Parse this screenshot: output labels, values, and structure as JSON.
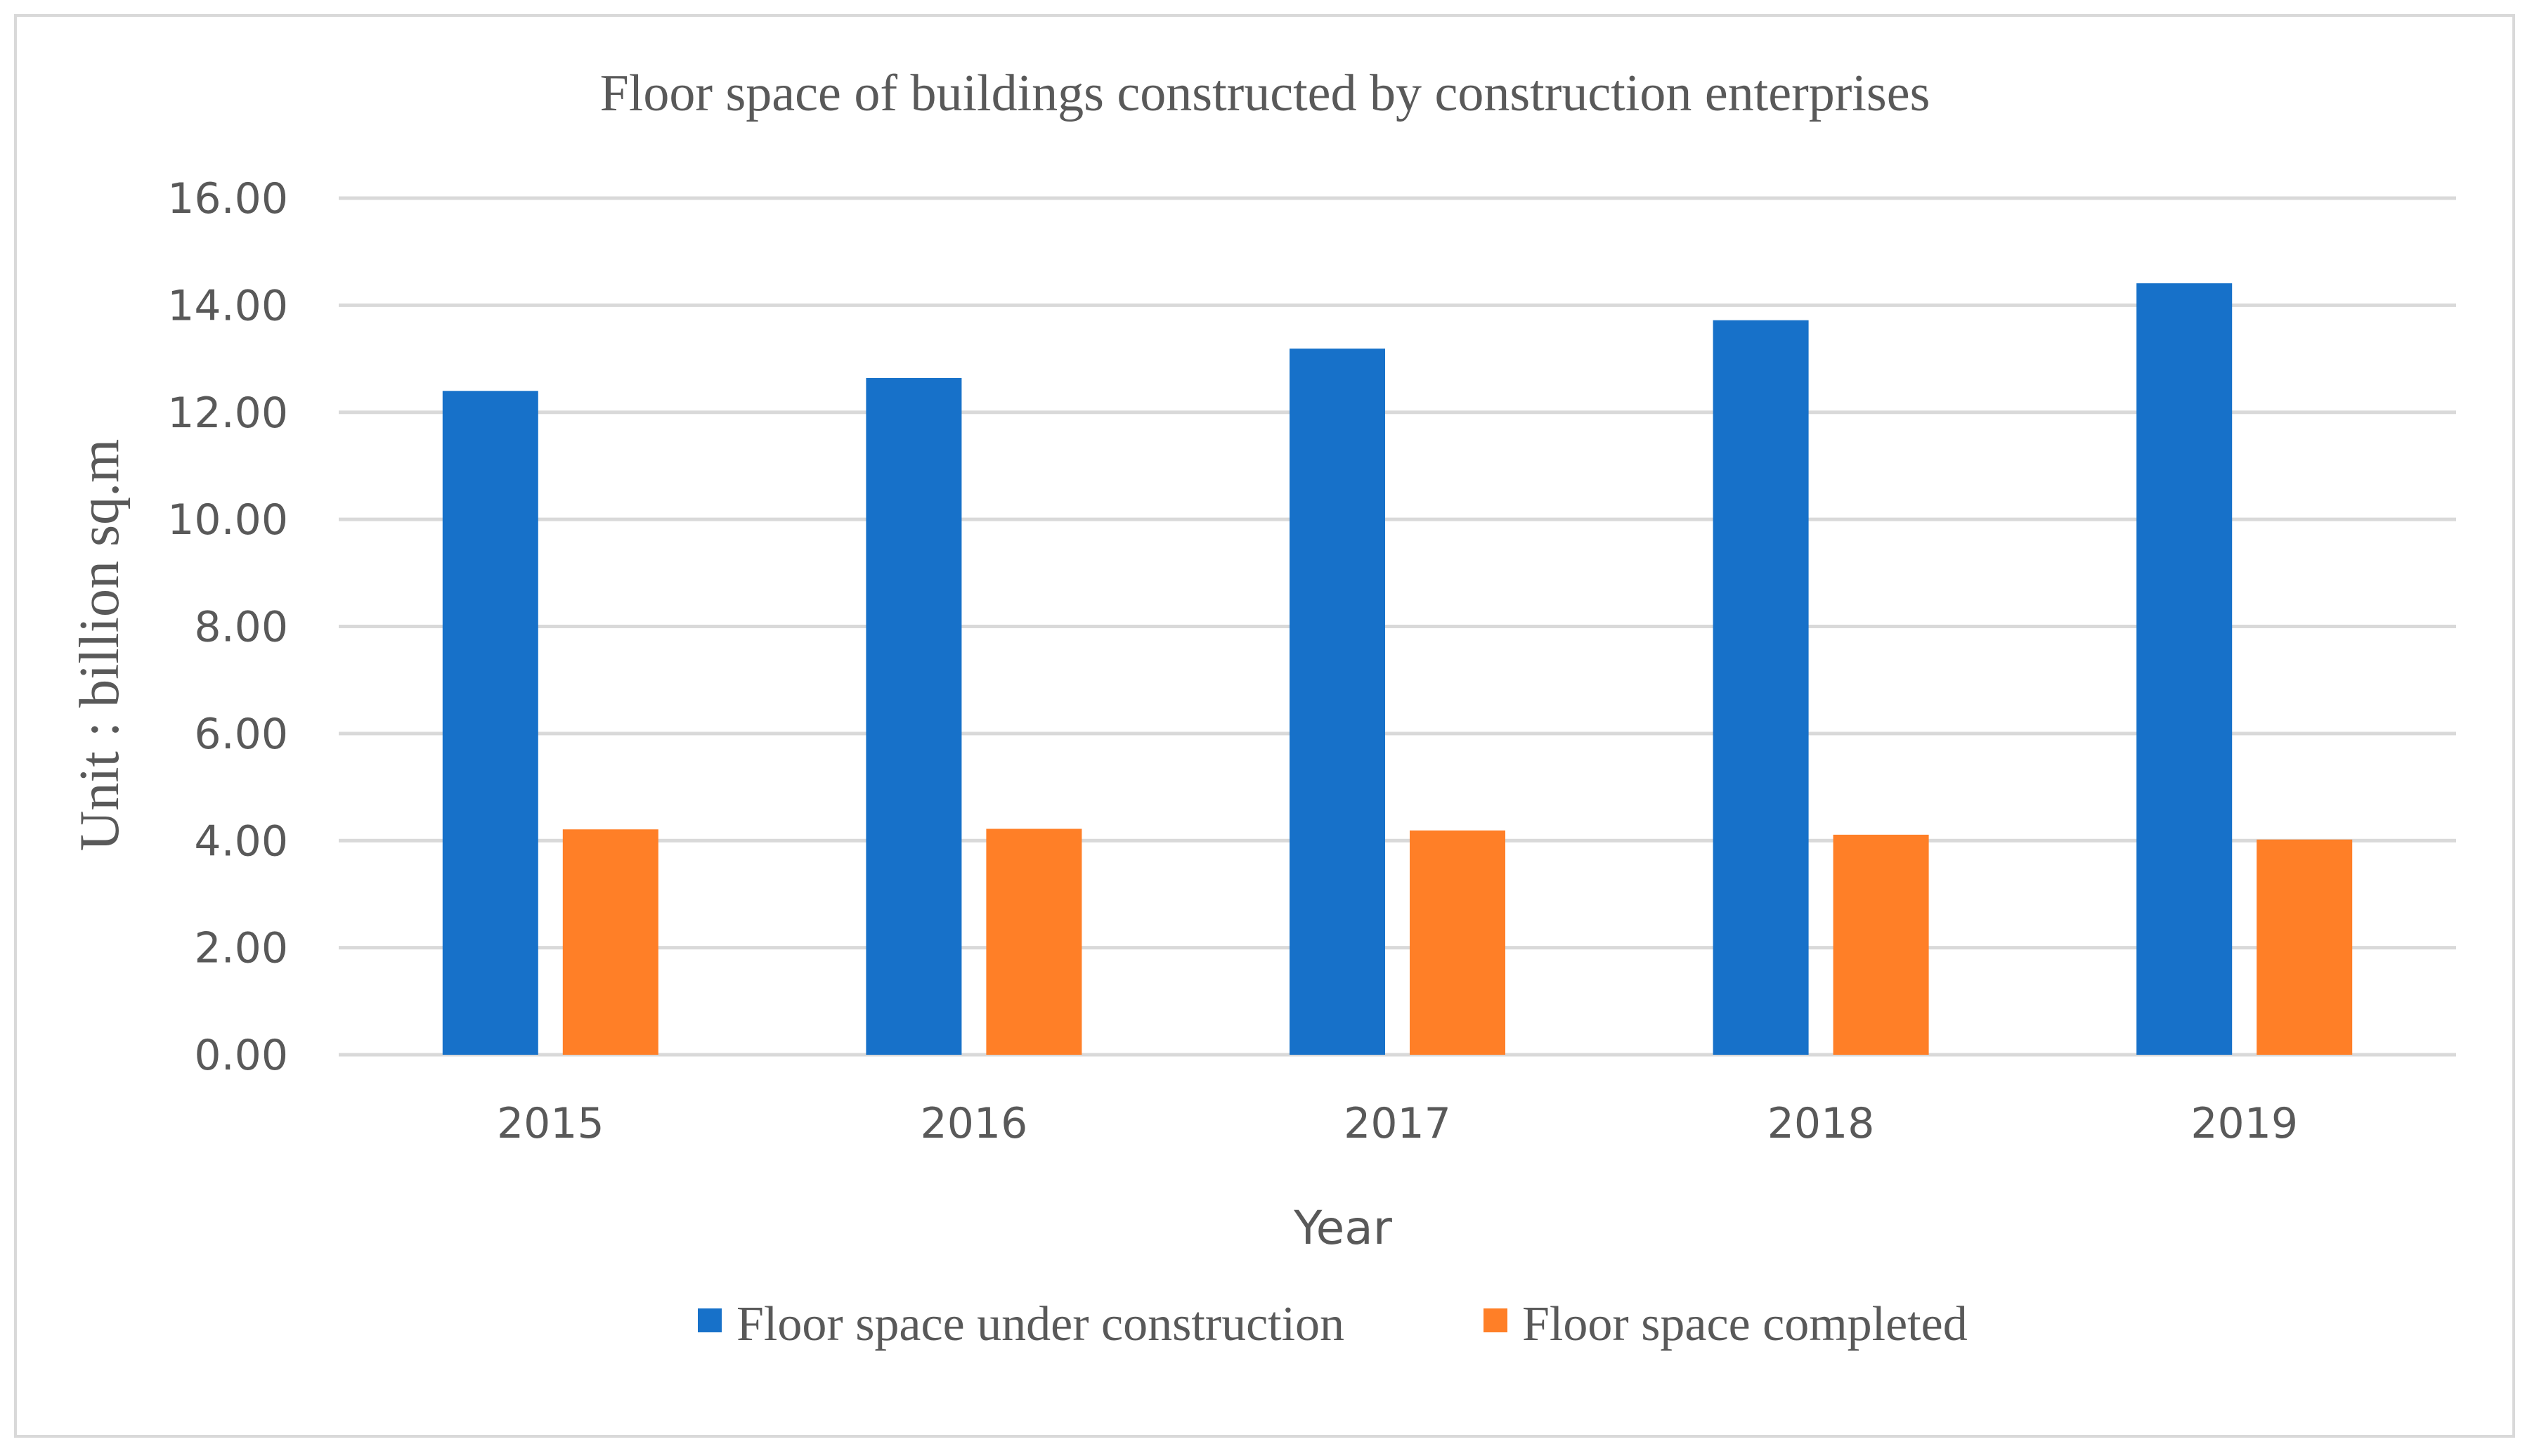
{
  "chart_data": {
    "type": "bar",
    "title": "Floor space of buildings constructed by construction enterprises",
    "xlabel": "Year",
    "ylabel": "Unit : billion sq.m",
    "categories": [
      "2015",
      "2016",
      "2017",
      "2018",
      "2019"
    ],
    "series": [
      {
        "name": "Floor space under construction",
        "color": "#1771c9",
        "values": [
          12.4,
          12.64,
          13.19,
          13.72,
          14.41
        ]
      },
      {
        "name": "Floor space completed",
        "color": "#ff7f27",
        "values": [
          4.21,
          4.22,
          4.19,
          4.11,
          4.02
        ]
      }
    ],
    "ylim": [
      0,
      16
    ],
    "ytick_labels": [
      "0.00",
      "2.00",
      "4.00",
      "6.00",
      "8.00",
      "10.00",
      "12.00",
      "14.00",
      "16.00"
    ],
    "grid": true,
    "legend_position": "bottom"
  }
}
